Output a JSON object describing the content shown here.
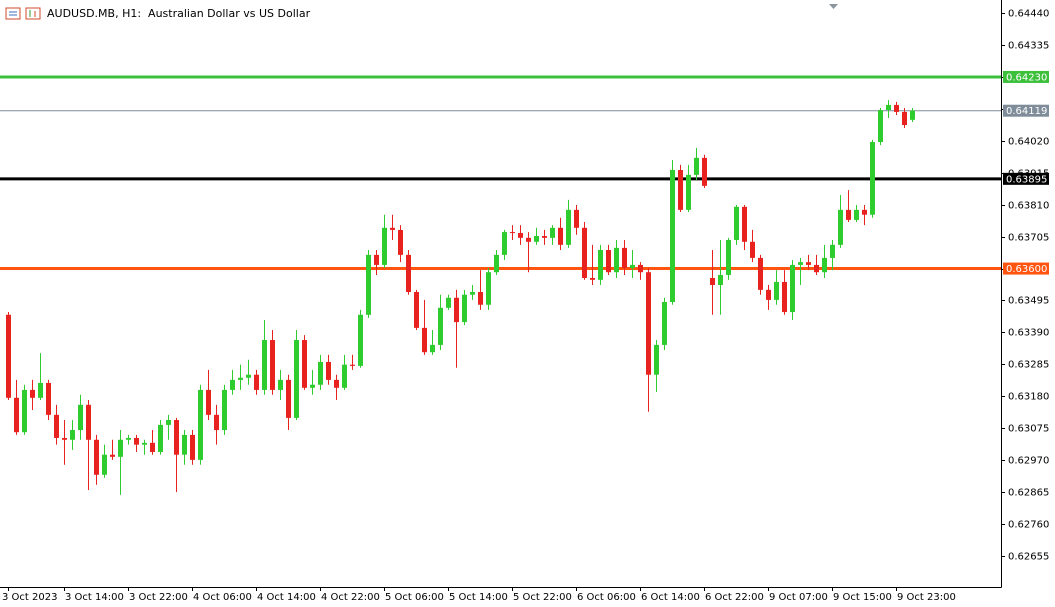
{
  "chart_data": {
    "type": "candlestick",
    "title": "AUDUSD.MB, H1:  Australian Dollar vs US Dollar",
    "up_color": "#2ecc2e",
    "down_color": "#e8221e",
    "categories": [
      "3 Oct 2023",
      null,
      null,
      null,
      null,
      null,
      null,
      "3 Oct 14:00",
      null,
      null,
      null,
      null,
      null,
      null,
      null,
      "3 Oct 22:00",
      null,
      null,
      null,
      null,
      null,
      null,
      null,
      "4 Oct 06:00",
      null,
      null,
      null,
      null,
      null,
      null,
      null,
      "4 Oct 14:00",
      null,
      null,
      null,
      null,
      null,
      null,
      null,
      "4 Oct 22:00",
      null,
      null,
      null,
      null,
      null,
      null,
      null,
      "5 Oct 06:00",
      null,
      null,
      null,
      null,
      null,
      null,
      null,
      "5 Oct 14:00",
      null,
      null,
      null,
      null,
      null,
      null,
      null,
      "5 Oct 22:00",
      null,
      null,
      null,
      null,
      null,
      null,
      null,
      "6 Oct 06:00",
      null,
      null,
      null,
      null,
      null,
      null,
      null,
      "6 Oct 14:00",
      null,
      null,
      null,
      null,
      null,
      null,
      null,
      "6 Oct 22:00",
      null,
      null,
      null,
      null,
      null,
      null,
      null,
      "9 Oct 07:00",
      null,
      null,
      null,
      null,
      null,
      null,
      null,
      "9 Oct 15:00",
      null,
      null,
      null,
      null,
      null,
      null,
      null,
      "9 Oct 23:00",
      null,
      null
    ],
    "open": [
      0.63448,
      0.63175,
      0.63062,
      0.63201,
      0.63175,
      0.63224,
      0.63119,
      0.63043,
      0.63037,
      0.63069,
      0.63152,
      0.63037,
      0.62922,
      0.62988,
      0.62981,
      0.63037,
      0.63043,
      0.63021,
      0.63027,
      0.62997,
      0.63086,
      0.63102,
      0.62988,
      0.63053,
      0.62971,
      0.63201,
      0.63119,
      0.63069,
      0.63201,
      0.63234,
      0.63241,
      0.63251,
      0.63201,
      0.63365,
      0.63201,
      0.63234,
      0.63109,
      0.63365,
      0.63208,
      0.63218,
      0.63293,
      0.63234,
      0.63208,
      0.63284,
      0.6328,
      0.63448,
      0.63645,
      0.63612,
      0.63734,
      0.63727,
      0.63645,
      0.63523,
      0.63405,
      0.63325,
      0.63349,
      0.63471,
      0.63504,
      0.63424,
      0.63514,
      0.63523,
      0.63481,
      0.63588,
      0.63645,
      0.6372,
      0.63717,
      0.63701,
      0.63688,
      0.63707,
      0.63701,
      0.63734,
      0.63678,
      0.63793,
      0.63734,
      0.63569,
      0.63563,
      0.63661,
      0.63588,
      0.63668,
      0.63602,
      0.63612,
      0.63588,
      0.63251,
      0.63349,
      0.6349,
      0.63924,
      0.63793,
      0.63908,
      0.63964,
      0.63569,
      0.63546,
      0.63579,
      0.63694,
      0.63803,
      0.63688,
      0.63635,
      0.6353,
      0.63497,
      0.63556,
      0.63457,
      0.63612,
      0.63621,
      0.63612,
      0.63588,
      0.63635,
      0.63678,
      0.63793,
      0.6376,
      0.63793,
      0.63777,
      0.64016,
      0.64121,
      0.64138,
      0.64115,
      0.64089
    ],
    "high": [
      0.63457,
      0.63234,
      0.63218,
      0.63234,
      0.63322,
      0.63234,
      0.63152,
      0.63102,
      0.63102,
      0.63185,
      0.63168,
      0.63053,
      0.63021,
      0.63037,
      0.63069,
      0.63053,
      0.63053,
      0.63037,
      0.63069,
      0.63102,
      0.63119,
      0.63109,
      0.63069,
      0.63069,
      0.63218,
      0.63267,
      0.63152,
      0.63218,
      0.63267,
      0.63284,
      0.633,
      0.63267,
      0.63431,
      0.63398,
      0.63267,
      0.63251,
      0.63398,
      0.63381,
      0.63267,
      0.63316,
      0.63316,
      0.63251,
      0.63316,
      0.63316,
      0.63464,
      0.63661,
      0.63661,
      0.63777,
      0.63777,
      0.63743,
      0.63661,
      0.6353,
      0.63497,
      0.63398,
      0.63514,
      0.63514,
      0.6353,
      0.6353,
      0.63546,
      0.63595,
      0.63602,
      0.63661,
      0.63727,
      0.63743,
      0.63743,
      0.6372,
      0.63734,
      0.63727,
      0.63743,
      0.63767,
      0.63826,
      0.63809,
      0.63753,
      0.63678,
      0.63678,
      0.63678,
      0.63694,
      0.63694,
      0.63661,
      0.63621,
      0.63602,
      0.63365,
      0.63504,
      0.63957,
      0.63941,
      0.63941,
      0.63997,
      0.63974,
      0.63661,
      0.63694,
      0.63701,
      0.63809,
      0.63809,
      0.63727,
      0.63645,
      0.63546,
      0.63595,
      0.63595,
      0.63628,
      0.63635,
      0.63645,
      0.63645,
      0.63678,
      0.63694,
      0.63842,
      0.63858,
      0.63809,
      0.63809,
      0.64023,
      0.64128,
      0.64154,
      0.64148,
      0.64128,
      0.64128
    ],
    "low": [
      0.63168,
      0.63053,
      0.63053,
      0.63135,
      0.63168,
      0.63102,
      0.63021,
      0.62955,
      0.63004,
      0.63037,
      0.62872,
      0.62889,
      0.62912,
      0.62971,
      0.62856,
      0.63021,
      0.62997,
      0.62988,
      0.62988,
      0.62988,
      0.63037,
      0.62865,
      0.62955,
      0.62955,
      0.62955,
      0.63102,
      0.63021,
      0.63053,
      0.63185,
      0.63201,
      0.63218,
      0.63185,
      0.63185,
      0.63185,
      0.63168,
      0.63069,
      0.63102,
      0.63201,
      0.63185,
      0.63201,
      0.63218,
      0.63168,
      0.63201,
      0.63267,
      0.63274,
      0.63438,
      0.63579,
      0.63602,
      0.63694,
      0.63621,
      0.63514,
      0.63398,
      0.63316,
      0.63316,
      0.63332,
      0.63464,
      0.63274,
      0.63414,
      0.63497,
      0.63464,
      0.63464,
      0.63579,
      0.63628,
      0.63694,
      0.63678,
      0.63588,
      0.63678,
      0.63678,
      0.63678,
      0.63661,
      0.63668,
      0.63711,
      0.63563,
      0.63546,
      0.63546,
      0.63579,
      0.63569,
      0.63579,
      0.63569,
      0.63563,
      0.63129,
      0.63194,
      0.63332,
      0.63481,
      0.63786,
      0.63786,
      0.63891,
      0.63865,
      0.63448,
      0.63448,
      0.63563,
      0.63678,
      0.63661,
      0.63621,
      0.63514,
      0.63464,
      0.63481,
      0.63448,
      0.63431,
      0.63546,
      0.63595,
      0.63579,
      0.63569,
      0.63595,
      0.63668,
      0.63753,
      0.63753,
      0.63743,
      0.63767,
      0.64006,
      0.64095,
      0.64105,
      0.64062,
      0.64082
    ],
    "close": [
      0.63175,
      0.63062,
      0.63201,
      0.63175,
      0.63224,
      0.63119,
      0.63043,
      0.63037,
      0.63069,
      0.63152,
      0.63037,
      0.62922,
      0.62988,
      0.62981,
      0.63037,
      0.63043,
      0.63021,
      0.63027,
      0.62997,
      0.63086,
      0.63102,
      0.62988,
      0.63053,
      0.62971,
      0.63201,
      0.63119,
      0.63069,
      0.63201,
      0.63234,
      0.63241,
      0.63251,
      0.63201,
      0.63365,
      0.63201,
      0.63234,
      0.63109,
      0.63365,
      0.63208,
      0.63218,
      0.63293,
      0.63234,
      0.63208,
      0.63284,
      0.6328,
      0.63448,
      0.63645,
      0.63612,
      0.63734,
      0.63727,
      0.63645,
      0.63523,
      0.63405,
      0.63325,
      0.63349,
      0.63471,
      0.63504,
      0.63424,
      0.63514,
      0.63523,
      0.63481,
      0.63588,
      0.63645,
      0.6372,
      0.63717,
      0.63701,
      0.63688,
      0.63707,
      0.63701,
      0.63734,
      0.63678,
      0.63793,
      0.63734,
      0.63569,
      0.63563,
      0.63661,
      0.63588,
      0.63668,
      0.63602,
      0.63612,
      0.63588,
      0.63251,
      0.63349,
      0.6349,
      0.63924,
      0.63793,
      0.63908,
      0.63964,
      0.63872,
      0.63546,
      0.63579,
      0.63694,
      0.63803,
      0.63688,
      0.63635,
      0.6353,
      0.63497,
      0.63556,
      0.63457,
      0.63612,
      0.63621,
      0.63612,
      0.63588,
      0.63635,
      0.63678,
      0.63793,
      0.6376,
      0.63793,
      0.63777,
      0.64016,
      0.64121,
      0.64138,
      0.64115,
      0.64072,
      0.64119
    ],
    "ylim": [
      0.62553,
      0.64483
    ],
    "yticks": [
      {
        "value": 0.6444,
        "label": "0.64440"
      },
      0.64335,
      {
        "value": 0.6423,
        "label": "0.64230"
      },
      0.64125,
      {
        "value": 0.6402,
        "label": "0.64020"
      },
      0.63915,
      {
        "value": 0.6381,
        "label": "0.63810"
      },
      0.63705,
      {
        "value": 0.636,
        "label": "0.63600"
      },
      0.63495,
      {
        "value": 0.6339,
        "label": "0.63390"
      },
      0.63285,
      {
        "value": 0.6318,
        "label": "0.63180"
      },
      0.63075,
      {
        "value": 0.6297,
        "label": "0.62970"
      },
      0.62865,
      {
        "value": 0.6276,
        "label": "0.62760"
      },
      0.62655
    ],
    "levels": [
      {
        "value": 0.6423,
        "label": "0.64230",
        "color": "#3cc03c",
        "width": 3
      },
      {
        "value": 0.64119,
        "label": "0.64119",
        "color": "#7f8c99",
        "width": 1
      },
      {
        "value": 0.63895,
        "label": "0.63895",
        "color": "#000000",
        "width": 3
      },
      {
        "value": 0.636,
        "label": "0.63600",
        "color": "#ff5511",
        "width": 3
      }
    ]
  }
}
